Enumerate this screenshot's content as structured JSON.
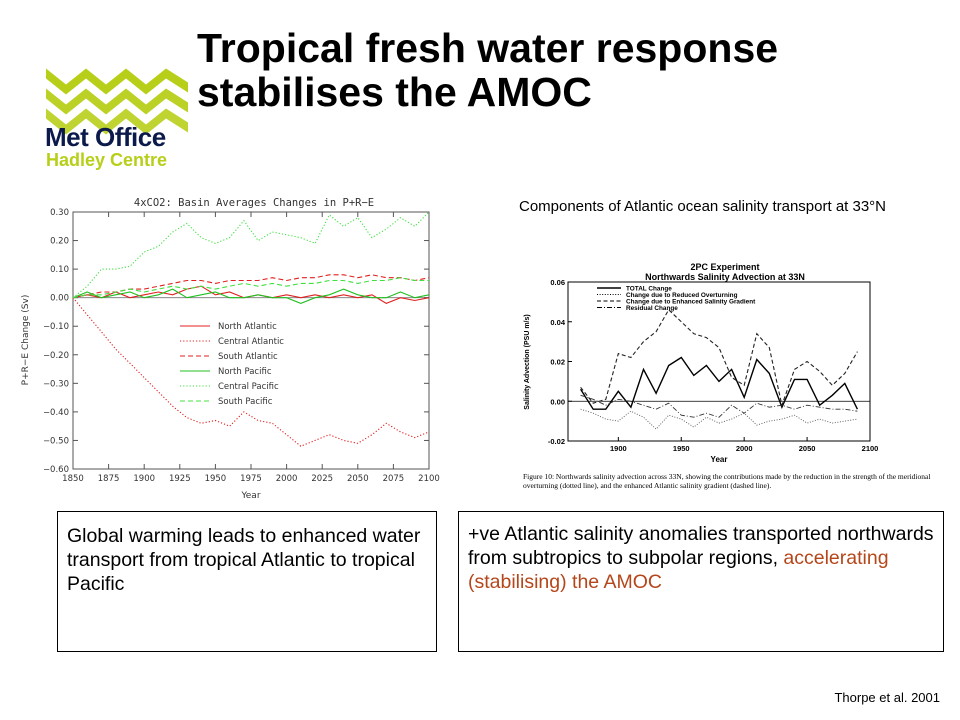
{
  "slide": {
    "title": "Tropical fresh water response stabilises the AMOC",
    "logo_line1": "Met Office",
    "logo_line2": "Hadley Centre",
    "right_caption": "Components of Atlantic ocean salinity transport at 33°N",
    "left_box": "Global warming leads to enhanced water transport from tropical Atlantic to tropical Pacific",
    "right_box_plain": "+ve Atlantic salinity anomalies transported northwards from subtropics to subpolar regions, ",
    "right_box_accent": "accelerating (stabilising)  the AMOC",
    "citation": "Thorpe et al. 2001",
    "colors": {
      "logo_green": "#b8cf1a",
      "logo_navy": "#0b1a4a",
      "accent": "#b5461a"
    }
  },
  "chart_data": [
    {
      "type": "line",
      "title": "4xCO2:  Basin Averages Changes in P+R−E",
      "xlabel": "Year",
      "ylabel": "P+R−E  Change  (Sv)",
      "xlim": [
        1850,
        2100
      ],
      "ylim": [
        -0.6,
        0.3
      ],
      "xticks": [
        1850,
        1875,
        1900,
        1925,
        1950,
        1975,
        2000,
        2025,
        2050,
        2075,
        2100
      ],
      "yticks": [
        -0.6,
        -0.5,
        -0.4,
        -0.3,
        -0.2,
        -0.1,
        0.0,
        0.1,
        0.2,
        0.3
      ],
      "ytick_labels": [
        "−0.60",
        "−0.50",
        "−0.40",
        "−0.30",
        "−0.20",
        "−0.10",
        "0.00",
        "0.10",
        "0.20",
        "0.30"
      ],
      "legend_position": "center",
      "x": [
        1850,
        1860,
        1870,
        1880,
        1890,
        1900,
        1910,
        1920,
        1930,
        1940,
        1950,
        1960,
        1970,
        1980,
        1990,
        2000,
        2010,
        2020,
        2030,
        2040,
        2050,
        2060,
        2070,
        2080,
        2090,
        2100
      ],
      "series": [
        {
          "name": "North Atlantic",
          "color": "#e02020",
          "dash": "solid",
          "values": [
            0.0,
            0.01,
            0.0,
            0.02,
            0.0,
            0.01,
            0.02,
            0.01,
            0.03,
            0.04,
            0.01,
            0.02,
            0.0,
            0.01,
            0.0,
            0.01,
            0.0,
            0.01,
            0.0,
            0.01,
            0.0,
            0.01,
            -0.02,
            0.0,
            -0.01,
            0.0
          ]
        },
        {
          "name": "Central Atlantic",
          "color": "#e02020",
          "dash": "dot",
          "values": [
            0.0,
            -0.06,
            -0.12,
            -0.18,
            -0.23,
            -0.28,
            -0.33,
            -0.38,
            -0.42,
            -0.44,
            -0.43,
            -0.45,
            -0.4,
            -0.43,
            -0.44,
            -0.48,
            -0.52,
            -0.5,
            -0.48,
            -0.5,
            -0.51,
            -0.48,
            -0.44,
            -0.47,
            -0.49,
            -0.47
          ]
        },
        {
          "name": "South Atlantic",
          "color": "#e02020",
          "dash": "dash",
          "values": [
            0.0,
            0.01,
            0.02,
            0.02,
            0.03,
            0.03,
            0.04,
            0.05,
            0.06,
            0.06,
            0.05,
            0.06,
            0.06,
            0.06,
            0.07,
            0.06,
            0.07,
            0.07,
            0.08,
            0.08,
            0.07,
            0.08,
            0.07,
            0.07,
            0.06,
            0.07
          ]
        },
        {
          "name": "North Pacific",
          "color": "#20c020",
          "dash": "solid",
          "values": [
            0.0,
            0.02,
            0.0,
            0.01,
            0.02,
            0.0,
            0.01,
            0.03,
            0.0,
            0.01,
            0.02,
            0.0,
            0.0,
            0.01,
            0.0,
            0.0,
            -0.02,
            0.0,
            0.01,
            0.03,
            0.01,
            0.0,
            0.0,
            0.02,
            0.0,
            0.01
          ]
        },
        {
          "name": "Central Pacific",
          "color": "#40e040",
          "dash": "dot",
          "values": [
            0.0,
            0.04,
            0.1,
            0.1,
            0.11,
            0.16,
            0.18,
            0.23,
            0.26,
            0.21,
            0.19,
            0.21,
            0.27,
            0.2,
            0.23,
            0.22,
            0.21,
            0.19,
            0.29,
            0.25,
            0.28,
            0.21,
            0.24,
            0.28,
            0.25,
            0.3
          ]
        },
        {
          "name": "South Pacific",
          "color": "#40e040",
          "dash": "dash",
          "values": [
            0.0,
            0.01,
            0.01,
            0.02,
            0.03,
            0.02,
            0.03,
            0.04,
            0.03,
            0.04,
            0.03,
            0.04,
            0.05,
            0.04,
            0.05,
            0.04,
            0.05,
            0.05,
            0.06,
            0.06,
            0.05,
            0.06,
            0.06,
            0.07,
            0.06,
            0.06
          ]
        }
      ]
    },
    {
      "type": "line",
      "title": "2PC Experiment",
      "subtitle": "Northwards Salinity Advection at 33N",
      "xlabel": "Year",
      "ylabel": "Salinity Advection (PSU m/s)",
      "xlim": [
        1860,
        2100
      ],
      "ylim": [
        -0.02,
        0.06
      ],
      "xticks": [
        1900,
        1950,
        2000,
        2050,
        2100
      ],
      "yticks": [
        -0.02,
        0.0,
        0.02,
        0.04,
        0.06
      ],
      "ytick_labels": [
        "-0.02",
        "0.00",
        "0.02",
        "0.04",
        "0.06"
      ],
      "legend_position": "top-left",
      "figure_caption": "Figure 10:  Northwards salinity advection across 33N, showing the contributions made by the reduction in the strength of the meridional overturning (dotted line), and the enhanced Atlantic salinity gradient (dashed line).",
      "x": [
        1870,
        1880,
        1890,
        1900,
        1910,
        1920,
        1930,
        1940,
        1950,
        1960,
        1970,
        1980,
        1990,
        2000,
        2010,
        2020,
        2030,
        2040,
        2050,
        2060,
        2070,
        2080,
        2090
      ],
      "series": [
        {
          "name": "TOTAL Change",
          "dash": "solid",
          "values": [
            0.006,
            -0.004,
            -0.004,
            0.005,
            -0.003,
            0.016,
            0.004,
            0.018,
            0.022,
            0.013,
            0.018,
            0.01,
            0.016,
            0.002,
            0.021,
            0.014,
            -0.003,
            0.011,
            0.011,
            -0.002,
            0.003,
            0.009,
            -0.004
          ]
        },
        {
          "name": "Change due to Reduced Overturning",
          "dash": "dot",
          "values": [
            -0.004,
            -0.006,
            -0.009,
            -0.01,
            -0.005,
            -0.008,
            -0.014,
            -0.007,
            -0.009,
            -0.013,
            -0.008,
            -0.011,
            -0.009,
            -0.006,
            -0.012,
            -0.01,
            -0.009,
            -0.007,
            -0.011,
            -0.009,
            -0.011,
            -0.01,
            -0.009
          ]
        },
        {
          "name": "Change due to Enhanced Salinity Gradient",
          "dash": "dash",
          "values": [
            0.007,
            -0.001,
            0.001,
            0.024,
            0.022,
            0.03,
            0.035,
            0.046,
            0.04,
            0.034,
            0.032,
            0.027,
            0.012,
            0.008,
            0.034,
            0.027,
            -0.002,
            0.016,
            0.02,
            0.015,
            0.008,
            0.014,
            0.025
          ]
        },
        {
          "name": "Residual Change",
          "dash": "dashdot",
          "values": [
            0.003,
            0.001,
            -0.002,
            0.001,
            0.0,
            -0.002,
            -0.004,
            -0.001,
            -0.007,
            -0.008,
            -0.006,
            -0.008,
            -0.002,
            -0.006,
            -0.001,
            -0.003,
            -0.002,
            -0.004,
            -0.002,
            -0.003,
            -0.004,
            -0.004,
            -0.005
          ]
        }
      ]
    }
  ]
}
